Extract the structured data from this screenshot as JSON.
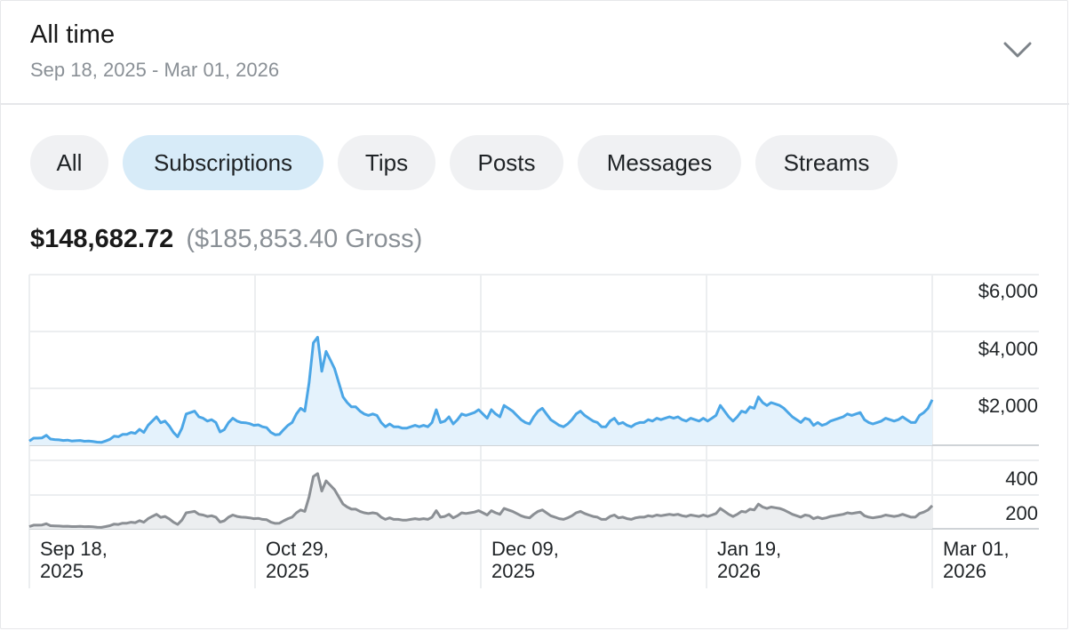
{
  "period": {
    "title": "All time",
    "range": "Sep 18, 2025 - Mar 01, 2026",
    "toggle_icon": "chevron-down-icon"
  },
  "filters": [
    {
      "label": "All",
      "active": false
    },
    {
      "label": "Subscriptions",
      "active": true
    },
    {
      "label": "Tips",
      "active": false
    },
    {
      "label": "Posts",
      "active": false
    },
    {
      "label": "Messages",
      "active": false
    },
    {
      "label": "Streams",
      "active": false
    }
  ],
  "totals": {
    "net": "$148,682.72",
    "gross": "($185,853.40 Gross)"
  },
  "colors": {
    "earnings_line": "#4ba6e6",
    "earnings_fill": "#e4f2fc",
    "count_line": "#8b8f94",
    "count_fill": "#eceef0",
    "active_chip": "#d7ebf8",
    "chip": "#f0f1f3"
  },
  "chart_data": [
    {
      "type": "area",
      "name": "earnings",
      "x_range": [
        "2025-09-18",
        "2026-03-01"
      ],
      "y_ticks": [
        "$6,000",
        "$4,000",
        "$2,000"
      ],
      "ylim": [
        0,
        6000
      ],
      "grid": true,
      "values": [
        150,
        250,
        250,
        260,
        350,
        220,
        200,
        190,
        170,
        180,
        150,
        160,
        170,
        140,
        150,
        130,
        110,
        100,
        150,
        210,
        320,
        300,
        380,
        380,
        450,
        420,
        560,
        450,
        700,
        850,
        1000,
        790,
        850,
        680,
        450,
        300,
        600,
        1100,
        1150,
        1200,
        1000,
        950,
        850,
        900,
        800,
        470,
        550,
        800,
        950,
        850,
        800,
        790,
        760,
        700,
        720,
        650,
        620,
        450,
        370,
        380,
        550,
        700,
        800,
        1100,
        1300,
        1200,
        2200,
        3600,
        3800,
        2600,
        3300,
        3000,
        2700,
        2200,
        1700,
        1500,
        1350,
        1350,
        1200,
        1100,
        1050,
        1100,
        1050,
        800,
        650,
        750,
        650,
        650,
        600,
        600,
        650,
        700,
        650,
        700,
        650,
        800,
        1250,
        800,
        850,
        1000,
        750,
        900,
        1100,
        1050,
        1100,
        1150,
        1250,
        1100,
        950,
        1250,
        1100,
        1000,
        1400,
        1300,
        1200,
        1050,
        900,
        800,
        750,
        1000,
        1200,
        1300,
        1100,
        900,
        800,
        700,
        650,
        750,
        900,
        1100,
        1200,
        1050,
        950,
        850,
        800,
        650,
        650,
        850,
        950,
        750,
        800,
        700,
        650,
        750,
        800,
        800,
        900,
        850,
        950,
        900,
        950,
        1000,
        950,
        1000,
        900,
        850,
        950,
        900,
        850,
        950,
        850,
        950,
        1050,
        1400,
        1200,
        1000,
        850,
        1000,
        1200,
        1150,
        1350,
        1300,
        1700,
        1500,
        1400,
        1500,
        1450,
        1400,
        1300,
        1150,
        1000,
        900,
        800,
        950,
        900,
        700,
        800,
        700,
        750,
        850,
        900,
        950,
        1000,
        1100,
        1050,
        1100,
        1150,
        900,
        800,
        750,
        800,
        850,
        950,
        900,
        850,
        900,
        1000,
        900,
        800,
        800,
        1050,
        1150,
        1300,
        1600
      ]
    },
    {
      "type": "area",
      "name": "count",
      "y_ticks": [
        "400",
        "200"
      ],
      "ylim": [
        0,
        500
      ],
      "grid": true,
      "values": [
        13,
        21,
        21,
        22,
        29,
        18,
        17,
        16,
        14,
        15,
        13,
        13,
        14,
        12,
        13,
        11,
        9,
        8,
        13,
        18,
        27,
        25,
        32,
        32,
        38,
        35,
        47,
        38,
        58,
        71,
        83,
        66,
        71,
        57,
        38,
        25,
        50,
        92,
        96,
        100,
        83,
        79,
        71,
        75,
        67,
        39,
        46,
        67,
        79,
        71,
        67,
        66,
        63,
        58,
        60,
        54,
        52,
        38,
        31,
        32,
        46,
        58,
        67,
        92,
        108,
        100,
        183,
        300,
        317,
        217,
        275,
        250,
        225,
        183,
        142,
        125,
        113,
        113,
        100,
        92,
        88,
        92,
        88,
        67,
        54,
        63,
        54,
        54,
        50,
        50,
        54,
        58,
        54,
        58,
        54,
        67,
        104,
        67,
        71,
        83,
        63,
        75,
        92,
        88,
        92,
        96,
        104,
        92,
        79,
        104,
        92,
        83,
        117,
        108,
        100,
        88,
        75,
        67,
        63,
        83,
        100,
        108,
        92,
        75,
        67,
        58,
        54,
        63,
        75,
        92,
        100,
        88,
        79,
        71,
        67,
        54,
        54,
        71,
        79,
        63,
        67,
        58,
        54,
        63,
        67,
        67,
        75,
        71,
        79,
        75,
        79,
        83,
        79,
        83,
        75,
        71,
        79,
        75,
        71,
        79,
        71,
        79,
        88,
        117,
        100,
        83,
        71,
        83,
        100,
        96,
        113,
        108,
        142,
        125,
        117,
        125,
        121,
        117,
        108,
        96,
        83,
        75,
        67,
        79,
        75,
        58,
        67,
        58,
        63,
        71,
        75,
        79,
        83,
        92,
        88,
        92,
        96,
        75,
        67,
        63,
        67,
        71,
        79,
        75,
        71,
        75,
        83,
        75,
        67,
        67,
        88,
        96,
        108,
        133
      ]
    }
  ],
  "x_axis": [
    {
      "line1": "Sep 18,",
      "line2": "2025"
    },
    {
      "line1": "Oct 29,",
      "line2": "2025"
    },
    {
      "line1": "Dec 09,",
      "line2": "2025"
    },
    {
      "line1": "Jan 19,",
      "line2": "2026"
    },
    {
      "line1": "Mar 01,",
      "line2": "2026"
    }
  ]
}
